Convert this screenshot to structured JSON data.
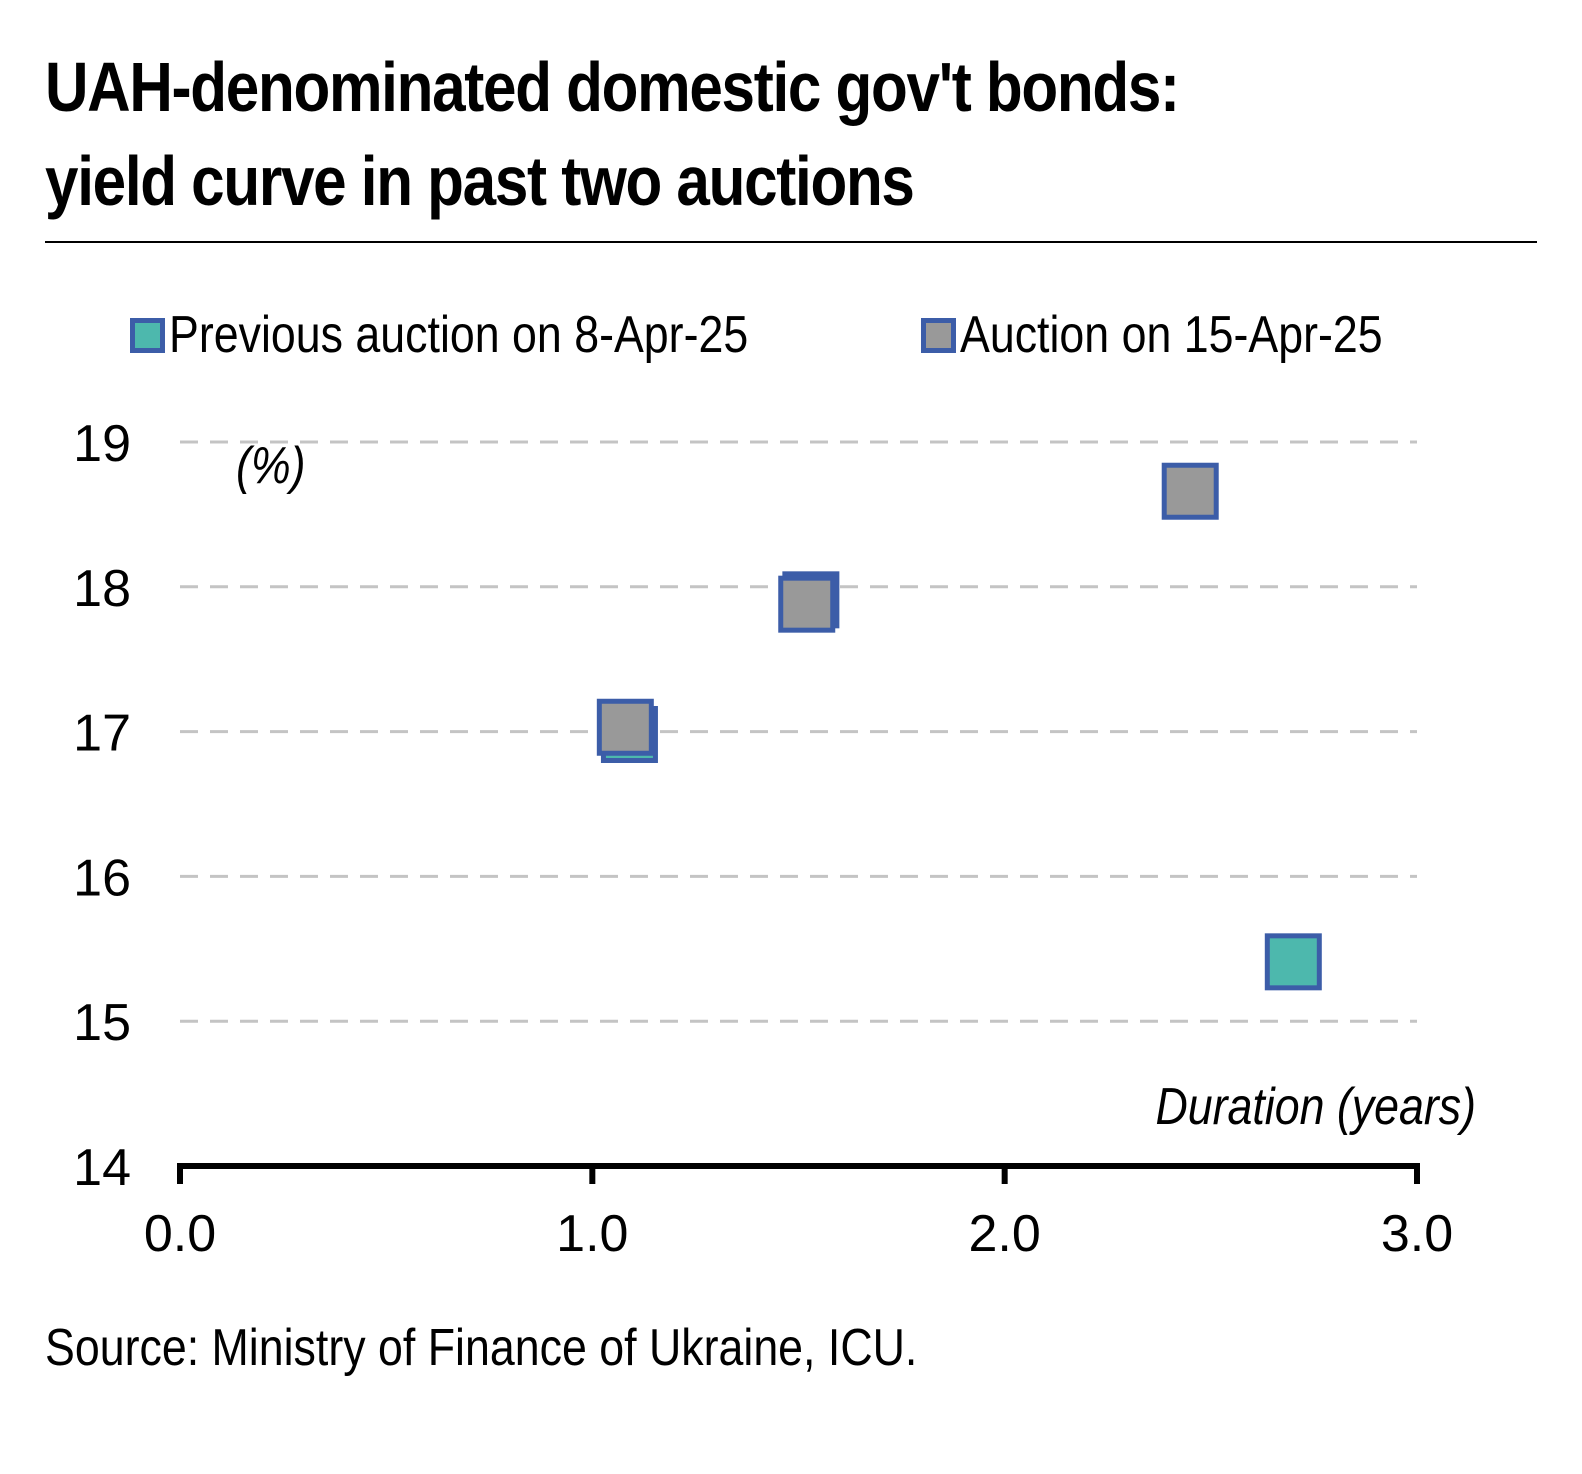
{
  "chart_data": {
    "type": "scatter",
    "title": "UAH-denominated domestic gov't bonds: yield curve in past two auctions",
    "title_lines": [
      "UAH-denominated domestic gov't bonds:",
      "yield curve in past two auctions"
    ],
    "xlabel": "Duration (years)",
    "ylabel": "(%)",
    "xlim": [
      0,
      3
    ],
    "ylim": [
      14,
      19
    ],
    "xticks": [
      "0.0",
      "1.0",
      "2.0",
      "3.0"
    ],
    "yticks": [
      "14",
      "15",
      "16",
      "17",
      "18",
      "19"
    ],
    "grid": true,
    "legend_position": "top",
    "series": [
      {
        "name": "Previous auction on 8-Apr-25",
        "color": "#4db8ad",
        "edge_color": "#3c5da8",
        "points": [
          {
            "x": 1.09,
            "y": 16.98
          },
          {
            "x": 1.53,
            "y": 17.91
          },
          {
            "x": 2.7,
            "y": 15.41
          }
        ]
      },
      {
        "name": "Auction on 15-Apr-25",
        "color": "#999999",
        "edge_color": "#3c5da8",
        "points": [
          {
            "x": 1.08,
            "y": 17.03
          },
          {
            "x": 1.52,
            "y": 17.88
          },
          {
            "x": 2.45,
            "y": 18.66
          }
        ]
      }
    ]
  },
  "source": "Source: Ministry of Finance of Ukraine, ICU."
}
